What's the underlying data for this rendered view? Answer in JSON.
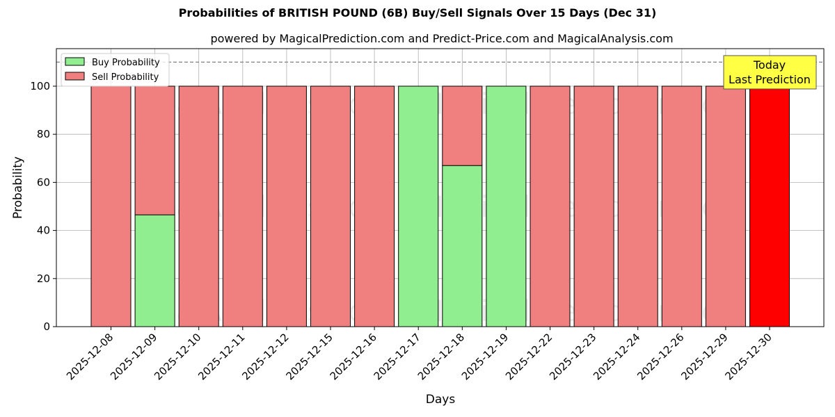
{
  "title": "Probabilities of BRITISH POUND (6B) Buy/Sell Signals Over 15 Days (Dec 31)",
  "subtitle": "powered by MagicalPrediction.com and Predict-Price.com and MagicalAnalysis.com",
  "colors": {
    "buy": "#90ee90",
    "sell": "#f08080",
    "today_sell": "#ff0000",
    "annotation_bg": "#ffff44"
  },
  "annotation": {
    "line1": "Today",
    "line2": "Last Prediction"
  },
  "watermarks": [
    "MagicalAnalysis.com",
    "MagicalPrediction.com"
  ],
  "chart_data": {
    "type": "bar",
    "stacked": true,
    "title": "Probabilities of BRITISH POUND (6B) Buy/Sell Signals Over 15 Days (Dec 31)",
    "subtitle": "powered by MagicalPrediction.com and Predict-Price.com and MagicalAnalysis.com",
    "xlabel": "Days",
    "ylabel": "Probability",
    "ylim": [
      0,
      115.6
    ],
    "yticks": [
      0,
      20,
      40,
      60,
      80,
      100
    ],
    "grid": true,
    "legend_position": "upper left",
    "reference_line": {
      "y": 110,
      "style": "dashed",
      "color": "#808080"
    },
    "categories": [
      "2025-12-08",
      "2025-12-09",
      "2025-12-10",
      "2025-12-11",
      "2025-12-12",
      "2025-12-15",
      "2025-12-16",
      "2025-12-17",
      "2025-12-18",
      "2025-12-19",
      "2025-12-22",
      "2025-12-23",
      "2025-12-24",
      "2025-12-26",
      "2025-12-29",
      "2025-12-30"
    ],
    "series": [
      {
        "name": "Buy Probability",
        "values": [
          0,
          46.5,
          0,
          0,
          0,
          0,
          0,
          100,
          67.0,
          100,
          0,
          0,
          0,
          0,
          0,
          0
        ]
      },
      {
        "name": "Sell Probability",
        "values": [
          100,
          53.5,
          100,
          100,
          100,
          100,
          100,
          0,
          33.0,
          0,
          100,
          100,
          100,
          100,
          100,
          100
        ]
      }
    ],
    "annotations": [
      {
        "text": "Today\nLast Prediction",
        "x": "2025-12-30"
      }
    ]
  }
}
